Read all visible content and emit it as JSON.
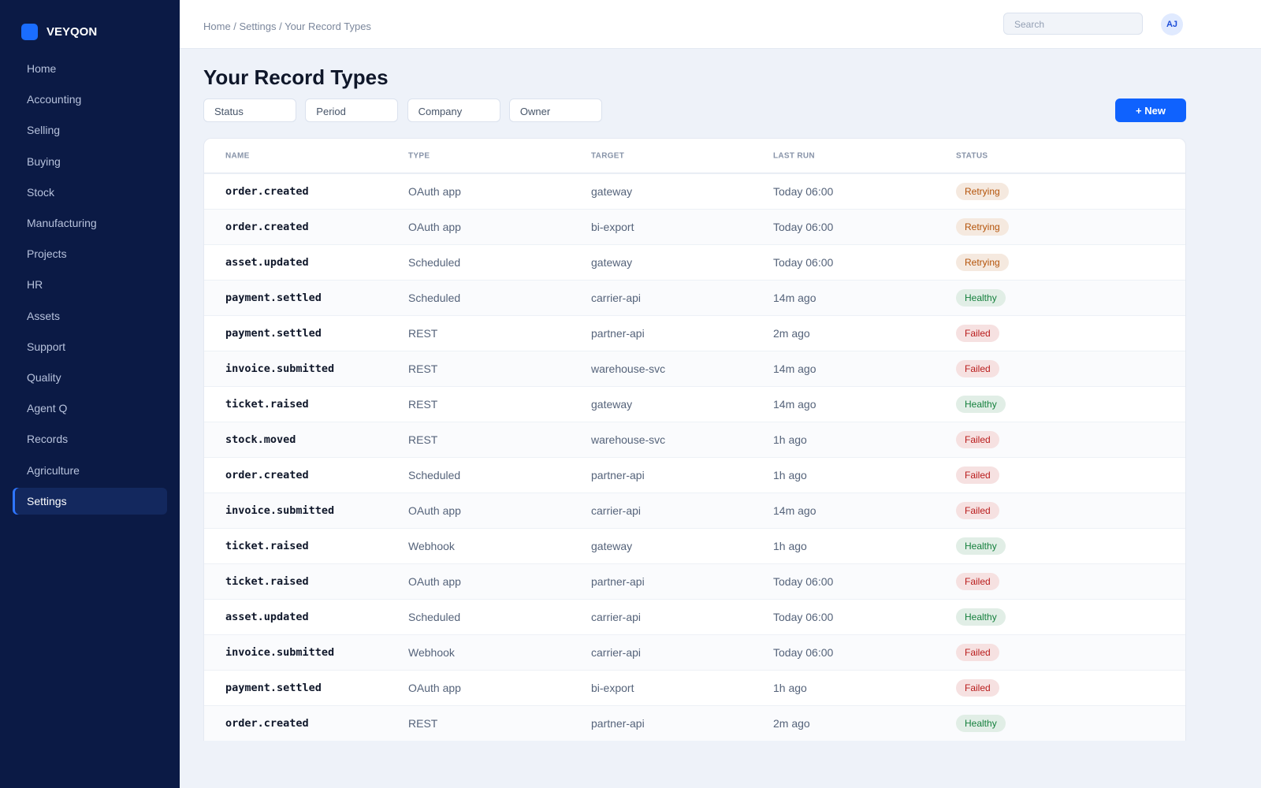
{
  "brand": "VEYQON",
  "nav": [
    {
      "label": "Home"
    },
    {
      "label": "Accounting"
    },
    {
      "label": "Selling"
    },
    {
      "label": "Buying"
    },
    {
      "label": "Stock"
    },
    {
      "label": "Manufacturing"
    },
    {
      "label": "Projects"
    },
    {
      "label": "HR"
    },
    {
      "label": "Assets"
    },
    {
      "label": "Support"
    },
    {
      "label": "Quality"
    },
    {
      "label": "Agent Q"
    },
    {
      "label": "Records"
    },
    {
      "label": "Agriculture"
    },
    {
      "label": "Settings",
      "active": true
    }
  ],
  "header": {
    "breadcrumb": "Home / Settings / Your Record Types",
    "search_placeholder": "Search",
    "avatar": "AJ"
  },
  "title": "Your Record Types",
  "filters": [
    "Status",
    "Period",
    "Company",
    "Owner"
  ],
  "new_button": "+ New",
  "table": {
    "columns": [
      "NAME",
      "TYPE",
      "TARGET",
      "LAST RUN",
      "STATUS"
    ],
    "rows": [
      {
        "cells": [
          "order.created",
          "OAuth app",
          "gateway",
          "Today 06:00",
          "Retrying"
        ],
        "status_color": "#b45309"
      },
      {
        "cells": [
          "order.created",
          "OAuth app",
          "bi-export",
          "Today 06:00",
          "Retrying"
        ],
        "status_color": "#b45309"
      },
      {
        "cells": [
          "asset.updated",
          "Scheduled",
          "gateway",
          "Today 06:00",
          "Retrying"
        ],
        "status_color": "#b45309"
      },
      {
        "cells": [
          "payment.settled",
          "Scheduled",
          "carrier-api",
          "14m ago",
          "Healthy"
        ],
        "status_color": "#15803d"
      },
      {
        "cells": [
          "payment.settled",
          "REST",
          "partner-api",
          "2m ago",
          "Failed"
        ],
        "status_color": "#b91c1c"
      },
      {
        "cells": [
          "invoice.submitted",
          "REST",
          "warehouse-svc",
          "14m ago",
          "Failed"
        ],
        "status_color": "#b91c1c"
      },
      {
        "cells": [
          "ticket.raised",
          "REST",
          "gateway",
          "14m ago",
          "Healthy"
        ],
        "status_color": "#15803d"
      },
      {
        "cells": [
          "stock.moved",
          "REST",
          "warehouse-svc",
          "1h ago",
          "Failed"
        ],
        "status_color": "#b91c1c"
      },
      {
        "cells": [
          "order.created",
          "Scheduled",
          "partner-api",
          "1h ago",
          "Failed"
        ],
        "status_color": "#b91c1c"
      },
      {
        "cells": [
          "invoice.submitted",
          "OAuth app",
          "carrier-api",
          "14m ago",
          "Failed"
        ],
        "status_color": "#b91c1c"
      },
      {
        "cells": [
          "ticket.raised",
          "Webhook",
          "gateway",
          "1h ago",
          "Healthy"
        ],
        "status_color": "#15803d"
      },
      {
        "cells": [
          "ticket.raised",
          "OAuth app",
          "partner-api",
          "Today 06:00",
          "Failed"
        ],
        "status_color": "#b91c1c"
      },
      {
        "cells": [
          "asset.updated",
          "Scheduled",
          "carrier-api",
          "Today 06:00",
          "Healthy"
        ],
        "status_color": "#15803d"
      },
      {
        "cells": [
          "invoice.submitted",
          "Webhook",
          "carrier-api",
          "Today 06:00",
          "Failed"
        ],
        "status_color": "#b91c1c"
      },
      {
        "cells": [
          "payment.settled",
          "OAuth app",
          "bi-export",
          "1h ago",
          "Failed"
        ],
        "status_color": "#b91c1c"
      },
      {
        "cells": [
          "order.created",
          "REST",
          "partner-api",
          "2m ago",
          "Healthy"
        ],
        "status_color": "#15803d"
      }
    ]
  }
}
